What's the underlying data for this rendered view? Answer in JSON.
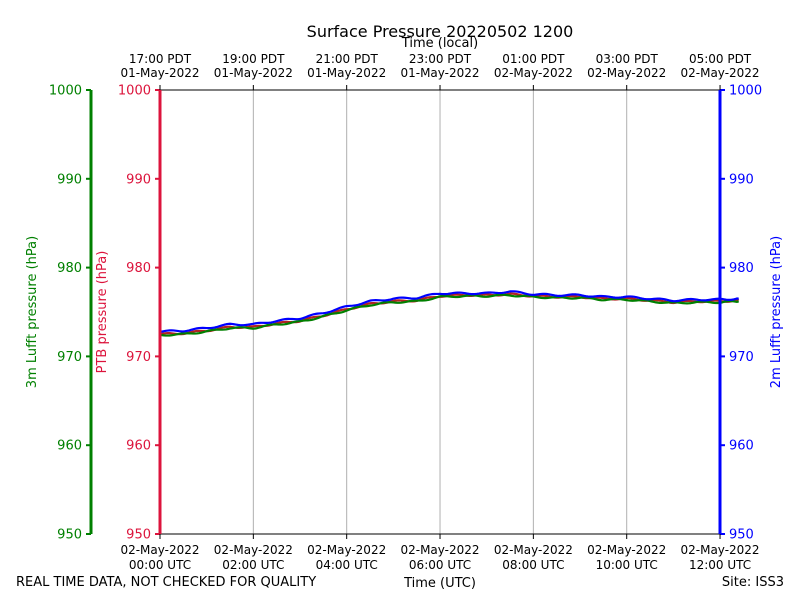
{
  "chart_data": {
    "type": "line",
    "title": "Surface Pressure 20220502 1200",
    "xlabel": "Time (UTC)",
    "x2label": "Time (local)",
    "x_range_hours": [
      0,
      12.4
    ],
    "bottom_ticks": [
      {
        "hour": 0,
        "line1": "02-May-2022",
        "line2": "00:00 UTC"
      },
      {
        "hour": 2,
        "line1": "02-May-2022",
        "line2": "02:00 UTC"
      },
      {
        "hour": 4,
        "line1": "02-May-2022",
        "line2": "04:00 UTC"
      },
      {
        "hour": 6,
        "line1": "02-May-2022",
        "line2": "06:00 UTC"
      },
      {
        "hour": 8,
        "line1": "02-May-2022",
        "line2": "08:00 UTC"
      },
      {
        "hour": 10,
        "line1": "02-May-2022",
        "line2": "10:00 UTC"
      },
      {
        "hour": 12,
        "line1": "02-May-2022",
        "line2": "12:00 UTC"
      }
    ],
    "top_ticks": [
      {
        "hour": 0,
        "line1": "17:00 PDT",
        "line2": "01-May-2022"
      },
      {
        "hour": 2,
        "line1": "19:00 PDT",
        "line2": "01-May-2022"
      },
      {
        "hour": 4,
        "line1": "21:00 PDT",
        "line2": "01-May-2022"
      },
      {
        "hour": 6,
        "line1": "23:00 PDT",
        "line2": "01-May-2022"
      },
      {
        "hour": 8,
        "line1": "01:00 PDT",
        "line2": "02-May-2022"
      },
      {
        "hour": 10,
        "line1": "03:00 PDT",
        "line2": "02-May-2022"
      },
      {
        "hour": 12,
        "line1": "05:00 PDT",
        "line2": "02-May-2022"
      }
    ],
    "y_axes": [
      {
        "id": "lufft3m",
        "label": "3m Lufft pressure (hPa)",
        "color": "#008000",
        "ylim": [
          950,
          1000
        ],
        "ticks": [
          "950",
          "960",
          "970",
          "980",
          "990",
          "1000"
        ]
      },
      {
        "id": "ptb",
        "label": "PTB pressure (hPa)",
        "color": "#dc143c",
        "ylim": [
          950,
          1000
        ],
        "ticks": [
          "950",
          "960",
          "970",
          "980",
          "990",
          "1000"
        ]
      },
      {
        "id": "lufft2m",
        "label": "2m Lufft pressure (hPa)",
        "color": "#0000ff",
        "ylim": [
          950,
          1000
        ],
        "ticks": [
          "950",
          "960",
          "970",
          "980",
          "990",
          "1000"
        ]
      }
    ],
    "grid": "vertical",
    "series": [
      {
        "name": "PTB pressure",
        "color": "#b22222",
        "x": [
          0,
          0.5,
          1,
          1.5,
          2,
          2.5,
          3,
          3.5,
          4,
          4.5,
          5,
          5.5,
          6,
          6.5,
          7,
          7.5,
          8,
          8.5,
          9,
          9.5,
          10,
          10.5,
          11,
          11.5,
          12,
          12.4
        ],
        "values": [
          972.5,
          972.6,
          972.9,
          973.3,
          973.3,
          973.7,
          974.0,
          974.6,
          975.3,
          975.9,
          976.2,
          976.3,
          976.8,
          976.9,
          976.9,
          977.0,
          976.8,
          976.7,
          976.7,
          976.5,
          976.5,
          976.3,
          976.1,
          976.2,
          976.2,
          976.3
        ]
      },
      {
        "name": "3m Lufft pressure",
        "color": "#008000",
        "x": [
          0,
          0.5,
          1,
          1.5,
          2,
          2.5,
          3,
          3.5,
          4,
          4.5,
          5,
          5.5,
          6,
          6.5,
          7,
          7.5,
          8,
          8.5,
          9,
          9.5,
          10,
          10.5,
          11,
          11.5,
          12,
          12.4
        ],
        "values": [
          972.4,
          972.5,
          972.8,
          973.2,
          973.2,
          973.6,
          973.9,
          974.5,
          975.2,
          975.8,
          976.1,
          976.2,
          976.7,
          976.8,
          976.8,
          976.9,
          976.7,
          976.6,
          976.6,
          976.4,
          976.4,
          976.2,
          976.0,
          976.1,
          976.1,
          976.2
        ]
      },
      {
        "name": "2m Lufft pressure",
        "color": "#0000ff",
        "x": [
          0,
          0.5,
          1,
          1.5,
          2,
          2.5,
          3,
          3.5,
          4,
          4.5,
          5,
          5.5,
          6,
          6.5,
          7,
          7.5,
          8,
          8.5,
          9,
          9.5,
          10,
          10.5,
          11,
          11.5,
          12,
          12.4
        ],
        "values": [
          972.8,
          972.9,
          973.2,
          973.6,
          973.6,
          974.0,
          974.3,
          974.9,
          975.6,
          976.2,
          976.5,
          976.6,
          977.1,
          977.1,
          977.1,
          977.3,
          977.0,
          976.9,
          976.9,
          976.7,
          976.7,
          976.5,
          976.3,
          976.4,
          976.4,
          976.5
        ]
      }
    ]
  },
  "footer": {
    "disclaimer": "REAL TIME DATA, NOT CHECKED FOR QUALITY",
    "site": "Site: ISS3"
  }
}
